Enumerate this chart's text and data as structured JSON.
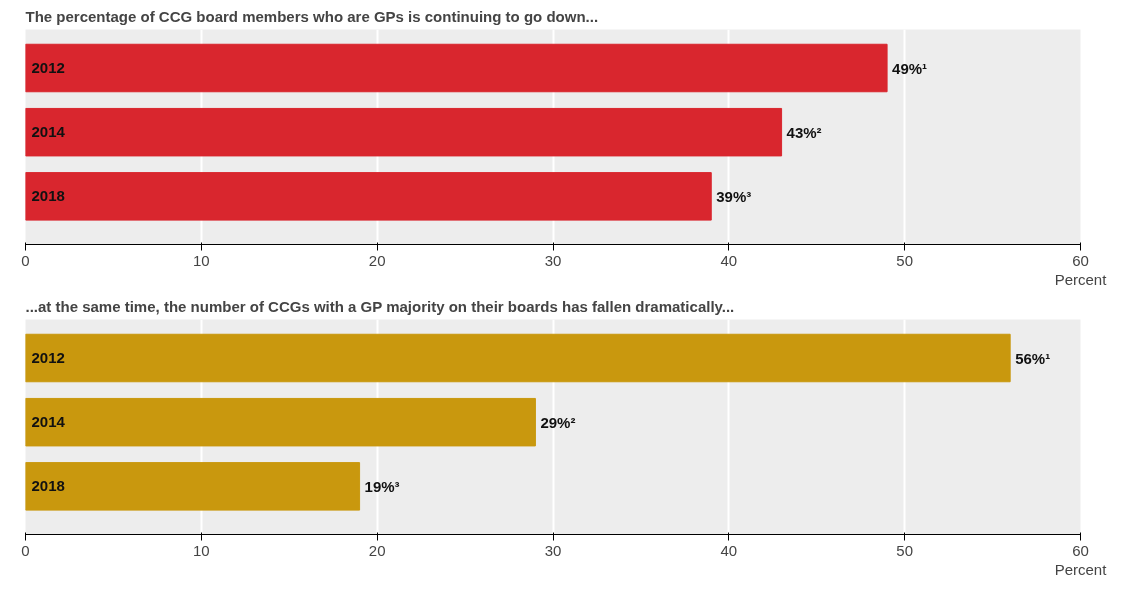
{
  "chart_data": [
    {
      "type": "bar",
      "orientation": "horizontal",
      "title": "The percentage of CCG board members who are GPs is continuing to go down...",
      "xlabel": "Percent",
      "categories": [
        "2012",
        "2014",
        "2018"
      ],
      "series": [
        {
          "color": "#d9262e",
          "values": [
            49,
            43,
            39
          ],
          "value_labels": [
            "49%¹",
            "43%²",
            "39%³"
          ]
        }
      ],
      "xlim": [
        0,
        60
      ],
      "xticks": [
        0,
        10,
        20,
        30,
        40,
        50,
        60
      ],
      "grid": "x"
    },
    {
      "type": "bar",
      "orientation": "horizontal",
      "title": "...at the same time, the number of CCGs with a GP majority on their boards has fallen dramatically...",
      "xlabel": "Percent",
      "categories": [
        "2012",
        "2014",
        "2018"
      ],
      "series": [
        {
          "color": "#c9980e",
          "values": [
            56,
            29,
            19
          ],
          "value_labels": [
            "56%¹",
            "29%²",
            "19%³"
          ]
        }
      ],
      "xlim": [
        0,
        60
      ],
      "xticks": [
        0,
        10,
        20,
        30,
        40,
        50,
        60
      ],
      "grid": "x"
    }
  ]
}
